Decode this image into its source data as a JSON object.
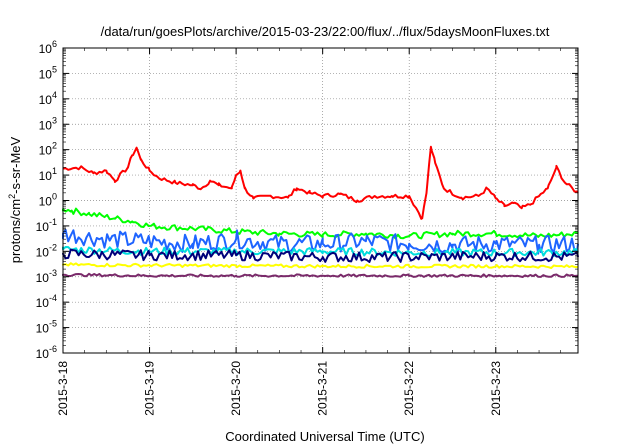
{
  "chart_data": {
    "type": "line",
    "title": "/data/run/goesPlots/archive/2015-03-23/22:00/flux/../flux/5daysMoonFluxes.txt",
    "xlabel": "Coordinated Universal Time (UTC)",
    "ylabel_main": "protons/cm",
    "ylabel_sup": "2",
    "ylabel_rest": "-s-sr-MeV",
    "y_scale": "log",
    "ylim": [
      1e-06,
      1000000.0
    ],
    "y_ticks": [
      {
        "base": "10",
        "exp": "6"
      },
      {
        "base": "10",
        "exp": "5"
      },
      {
        "base": "10",
        "exp": "4"
      },
      {
        "base": "10",
        "exp": "3"
      },
      {
        "base": "10",
        "exp": "2"
      },
      {
        "base": "10",
        "exp": "1"
      },
      {
        "base": "10",
        "exp": "0"
      },
      {
        "base": "10",
        "exp": "-1"
      },
      {
        "base": "10",
        "exp": "-2"
      },
      {
        "base": "10",
        "exp": "-3"
      },
      {
        "base": "10",
        "exp": "-4"
      },
      {
        "base": "10",
        "exp": "-5"
      },
      {
        "base": "10",
        "exp": "-6"
      }
    ],
    "x_range_days": [
      0,
      5.95
    ],
    "x_ticks": [
      "2015-3-18",
      "2015-3-19",
      "2015-3-20",
      "2015-3-21",
      "2015-3-22",
      "2015-3-23"
    ],
    "grid": true,
    "series": [
      {
        "color": "#ff0000",
        "points": [
          [
            0,
            18
          ],
          [
            0.2,
            20
          ],
          [
            0.35,
            12
          ],
          [
            0.5,
            15
          ],
          [
            0.6,
            6
          ],
          [
            0.75,
            20
          ],
          [
            0.8,
            60
          ],
          [
            0.85,
            120
          ],
          [
            0.9,
            40
          ],
          [
            1.0,
            15
          ],
          [
            1.1,
            8
          ],
          [
            1.3,
            5
          ],
          [
            1.5,
            4
          ],
          [
            1.6,
            3
          ],
          [
            1.7,
            6
          ],
          [
            1.8,
            4
          ],
          [
            1.95,
            3
          ],
          [
            2.0,
            10
          ],
          [
            2.05,
            15
          ],
          [
            2.1,
            3
          ],
          [
            2.2,
            1.2
          ],
          [
            2.4,
            1.5
          ],
          [
            2.6,
            1.3
          ],
          [
            2.7,
            3
          ],
          [
            2.85,
            2
          ],
          [
            3.0,
            1.5
          ],
          [
            3.2,
            1.8
          ],
          [
            3.4,
            1.0
          ],
          [
            3.6,
            1.5
          ],
          [
            3.8,
            1.5
          ],
          [
            4.0,
            1.5
          ],
          [
            4.15,
            0.2
          ],
          [
            4.2,
            2
          ],
          [
            4.25,
            130
          ],
          [
            4.3,
            30
          ],
          [
            4.4,
            3
          ],
          [
            4.6,
            1.3
          ],
          [
            4.8,
            1.5
          ],
          [
            4.9,
            3
          ],
          [
            5.0,
            1.2
          ],
          [
            5.1,
            0.6
          ],
          [
            5.2,
            0.8
          ],
          [
            5.3,
            0.5
          ],
          [
            5.4,
            0.7
          ],
          [
            5.5,
            1.5
          ],
          [
            5.6,
            3
          ],
          [
            5.7,
            20
          ],
          [
            5.8,
            5
          ],
          [
            5.95,
            2
          ]
        ]
      },
      {
        "color": "#00ff00",
        "points": [
          [
            0,
            0.45
          ],
          [
            0.1,
            0.4
          ],
          [
            0.3,
            0.3
          ],
          [
            0.6,
            0.2
          ],
          [
            0.8,
            0.15
          ],
          [
            1.0,
            0.1
          ],
          [
            1.5,
            0.08
          ],
          [
            2.0,
            0.06
          ],
          [
            2.5,
            0.05
          ],
          [
            3.0,
            0.045
          ],
          [
            3.5,
            0.05
          ],
          [
            4.0,
            0.04
          ],
          [
            4.5,
            0.05
          ],
          [
            5.0,
            0.05
          ],
          [
            5.5,
            0.04
          ],
          [
            5.95,
            0.05
          ]
        ]
      },
      {
        "color": "#1e64ff",
        "points": [
          [
            0,
            0.05
          ],
          [
            0.5,
            0.03
          ],
          [
            1.0,
            0.025
          ],
          [
            1.5,
            0.02
          ],
          [
            2.0,
            0.03
          ],
          [
            2.5,
            0.02
          ],
          [
            3.0,
            0.02
          ],
          [
            3.5,
            0.025
          ],
          [
            4.0,
            0.02
          ],
          [
            4.5,
            0.018
          ],
          [
            5.0,
            0.02
          ],
          [
            5.5,
            0.018
          ],
          [
            5.95,
            0.02
          ]
        ]
      },
      {
        "color": "#00dddd",
        "points": [
          [
            0,
            0.012
          ],
          [
            1.0,
            0.01
          ],
          [
            2.0,
            0.01
          ],
          [
            3.0,
            0.01
          ],
          [
            4.0,
            0.009
          ],
          [
            5.0,
            0.009
          ],
          [
            5.95,
            0.009
          ]
        ]
      },
      {
        "color": "#00007a",
        "points": [
          [
            0,
            0.008
          ],
          [
            1.0,
            0.007
          ],
          [
            2.0,
            0.007
          ],
          [
            3.0,
            0.006
          ],
          [
            4.0,
            0.006
          ],
          [
            5.0,
            0.0065
          ],
          [
            5.95,
            0.006
          ]
        ]
      },
      {
        "color": "#ffff00",
        "points": [
          [
            0,
            0.003
          ],
          [
            1.0,
            0.0028
          ],
          [
            2.0,
            0.0027
          ],
          [
            3.0,
            0.0026
          ],
          [
            4.0,
            0.0026
          ],
          [
            5.0,
            0.0026
          ],
          [
            5.95,
            0.0025
          ]
        ]
      },
      {
        "color": "#7a2a6a",
        "points": [
          [
            0,
            0.0012
          ],
          [
            1.0,
            0.0011
          ],
          [
            2.0,
            0.0011
          ],
          [
            3.0,
            0.0011
          ],
          [
            4.0,
            0.0011
          ],
          [
            5.0,
            0.0011
          ],
          [
            5.95,
            0.0011
          ]
        ]
      }
    ]
  }
}
